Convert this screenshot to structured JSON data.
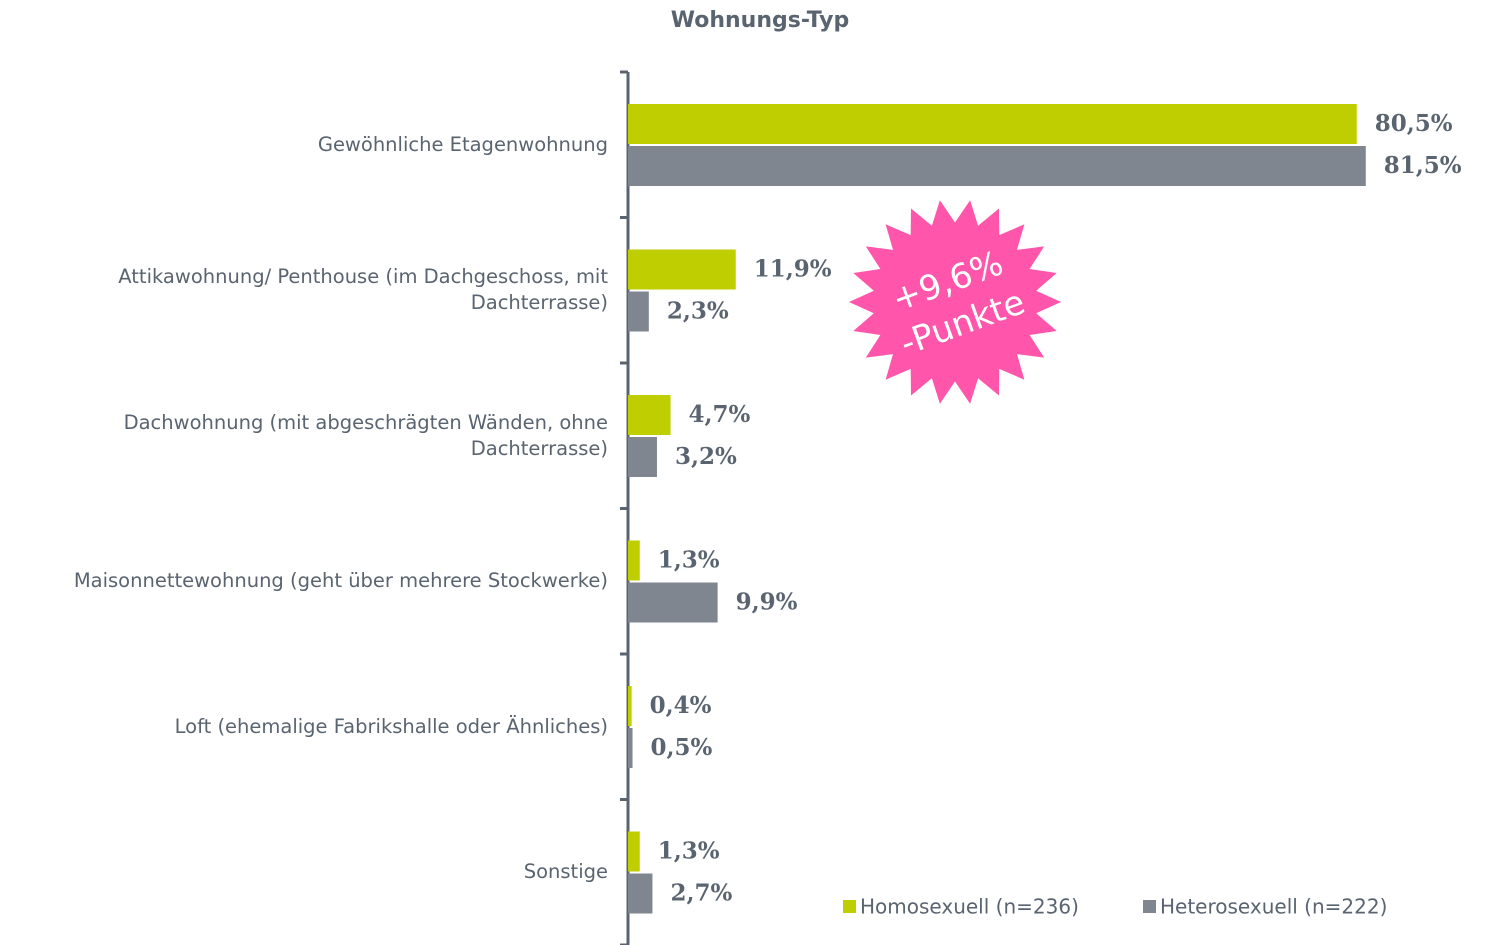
{
  "chart_data": {
    "type": "bar",
    "orientation": "horizontal",
    "title": "Wohnungs-Typ",
    "categories": [
      "Gewöhnliche Etagenwohnung",
      "Attikawohnung/ Penthouse (im Dachgeschoss, mit Dachterrasse)",
      "Dachwohnung (mit abgeschrägten Wänden, ohne Dachterrasse)",
      "Maisonnettewohnung (geht über mehrere Stockwerke)",
      "Loft (ehemalige Fabrikshalle oder Ähnliches)",
      "Sonstige"
    ],
    "series": [
      {
        "name": "Homosexuell (n=236)",
        "color": "#bfce00",
        "values": [
          80.5,
          11.9,
          4.7,
          1.3,
          0.4,
          1.3
        ],
        "value_labels": [
          "80,5%",
          "11,9%",
          "4,7%",
          "1,3%",
          "0,4%",
          "1,3%"
        ]
      },
      {
        "name": "Heterosexuell (n=222)",
        "color": "#7f868f",
        "values": [
          81.5,
          2.3,
          3.2,
          9.9,
          0.5,
          2.7
        ],
        "value_labels": [
          "81,5%",
          "2,3%",
          "3,2%",
          "9,9%",
          "0,5%",
          "2,7%"
        ]
      }
    ],
    "xlim": [
      0,
      95
    ],
    "annotation": {
      "lines": [
        "+9,6%",
        "-Punkte"
      ],
      "color": "#ff55aa"
    }
  }
}
